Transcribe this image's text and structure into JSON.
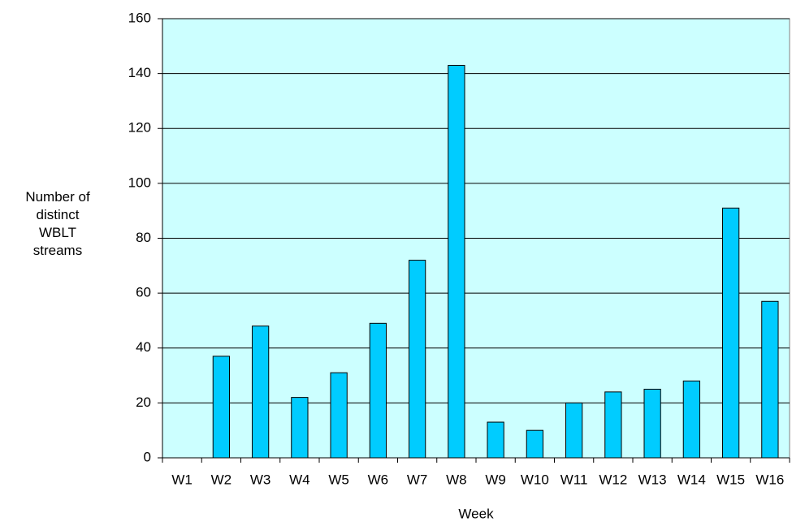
{
  "chart_data": {
    "type": "bar",
    "x_label": "Week",
    "y_label": "Number of distinct WBLT streams",
    "categories": [
      "W1",
      "W2",
      "W3",
      "W4",
      "W5",
      "W6",
      "W7",
      "W8",
      "W9",
      "W10",
      "W11",
      "W12",
      "W13",
      "W14",
      "W15",
      "W16"
    ],
    "values": [
      0,
      37,
      48,
      22,
      31,
      49,
      72,
      143,
      13,
      10,
      20,
      24,
      25,
      28,
      91,
      57
    ],
    "color": "#00ccff",
    "plot_background": "#ccffff",
    "ylim": [
      0,
      160
    ],
    "yticks": [
      0,
      20,
      40,
      60,
      80,
      100,
      120,
      140,
      160
    ],
    "grid": true
  }
}
